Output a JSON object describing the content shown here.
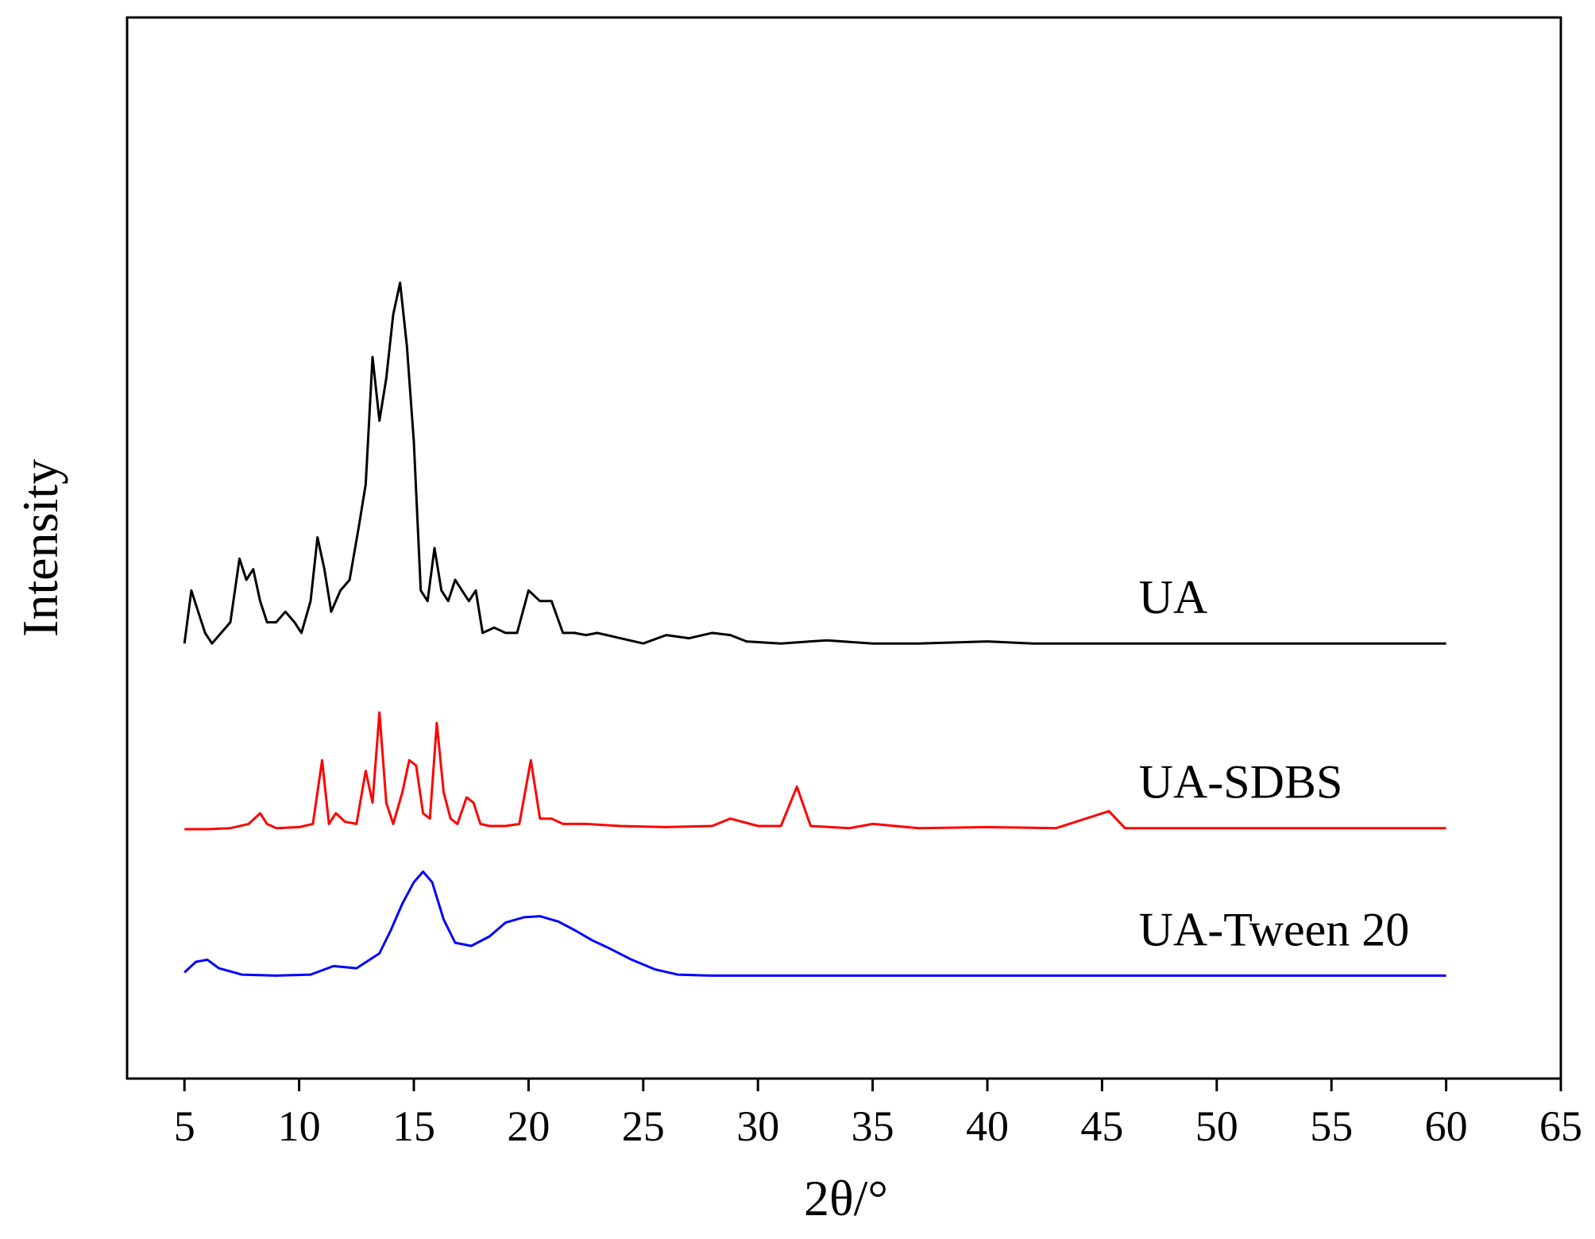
{
  "chart_data": {
    "type": "line",
    "title": "",
    "xlabel": "2θ/°",
    "ylabel": "Intensity",
    "xlim": [
      2.5,
      65
    ],
    "ylim": [
      0,
      1
    ],
    "x_ticks": [
      5,
      10,
      15,
      20,
      25,
      30,
      35,
      40,
      45,
      50,
      55,
      60,
      65
    ],
    "y_ticks_shown": false,
    "grid": false,
    "legend": "none; series named by labels placed beside the curves on the right",
    "series": [
      {
        "name": "UA",
        "color": "#000000",
        "x": [
          5.0,
          5.3,
          5.6,
          5.9,
          6.2,
          6.6,
          7.0,
          7.4,
          7.7,
          8.0,
          8.3,
          8.6,
          9.0,
          9.4,
          9.8,
          10.1,
          10.5,
          10.8,
          11.1,
          11.4,
          11.8,
          12.2,
          12.6,
          12.9,
          13.2,
          13.5,
          13.8,
          14.1,
          14.4,
          14.7,
          15.0,
          15.3,
          15.6,
          15.9,
          16.2,
          16.5,
          16.8,
          17.1,
          17.4,
          17.7,
          18.0,
          18.5,
          19.0,
          19.5,
          20.0,
          20.5,
          21.0,
          21.5,
          22.0,
          22.5,
          23.0,
          24.0,
          25.0,
          26.0,
          27.0,
          28.0,
          28.8,
          29.5,
          31.0,
          33.0,
          35.0,
          37.0,
          40.0,
          42.0,
          45.0,
          50.0,
          55.0,
          60.0
        ],
        "y": [
          0.41,
          0.46,
          0.44,
          0.42,
          0.41,
          0.42,
          0.43,
          0.49,
          0.47,
          0.48,
          0.45,
          0.43,
          0.43,
          0.44,
          0.43,
          0.42,
          0.45,
          0.51,
          0.48,
          0.44,
          0.46,
          0.47,
          0.52,
          0.56,
          0.68,
          0.62,
          0.66,
          0.72,
          0.75,
          0.69,
          0.6,
          0.46,
          0.45,
          0.5,
          0.46,
          0.45,
          0.47,
          0.46,
          0.45,
          0.46,
          0.42,
          0.425,
          0.42,
          0.42,
          0.46,
          0.45,
          0.45,
          0.42,
          0.42,
          0.418,
          0.42,
          0.415,
          0.41,
          0.418,
          0.415,
          0.42,
          0.418,
          0.412,
          0.41,
          0.413,
          0.41,
          0.41,
          0.412,
          0.41,
          0.41,
          0.41,
          0.41,
          0.41
        ]
      },
      {
        "name": "UA-SDBS",
        "color": "#ff0000",
        "x": [
          5.0,
          6.0,
          7.0,
          7.8,
          8.3,
          8.6,
          9.0,
          10.0,
          10.6,
          11.0,
          11.3,
          11.6,
          12.0,
          12.5,
          12.9,
          13.2,
          13.5,
          13.8,
          14.1,
          14.5,
          14.8,
          15.1,
          15.4,
          15.7,
          16.0,
          16.3,
          16.6,
          16.9,
          17.3,
          17.6,
          17.9,
          18.3,
          19.0,
          19.6,
          20.1,
          20.5,
          21.0,
          21.5,
          22.5,
          24.0,
          26.0,
          28.0,
          28.8,
          30.0,
          31.0,
          31.7,
          32.3,
          34.0,
          35.0,
          37.0,
          40.0,
          43.0,
          45.3,
          46.0,
          48.0,
          50.0,
          55.0,
          60.0
        ],
        "y": [
          0.235,
          0.235,
          0.236,
          0.24,
          0.25,
          0.24,
          0.236,
          0.237,
          0.24,
          0.3,
          0.24,
          0.25,
          0.242,
          0.24,
          0.29,
          0.26,
          0.345,
          0.26,
          0.24,
          0.27,
          0.3,
          0.295,
          0.25,
          0.245,
          0.335,
          0.27,
          0.245,
          0.24,
          0.265,
          0.26,
          0.24,
          0.238,
          0.238,
          0.24,
          0.3,
          0.245,
          0.245,
          0.24,
          0.24,
          0.238,
          0.237,
          0.238,
          0.245,
          0.238,
          0.238,
          0.275,
          0.238,
          0.236,
          0.24,
          0.236,
          0.237,
          0.236,
          0.252,
          0.236,
          0.236,
          0.236,
          0.236,
          0.236
        ]
      },
      {
        "name": "UA-Tween 20",
        "color": "#0000ff",
        "x": [
          5.0,
          5.5,
          6.0,
          6.5,
          7.5,
          9.0,
          10.5,
          11.5,
          12.5,
          13.5,
          14.0,
          14.5,
          15.0,
          15.4,
          15.8,
          16.3,
          16.8,
          17.5,
          18.3,
          19.0,
          19.8,
          20.5,
          21.3,
          22.0,
          22.8,
          23.5,
          24.5,
          25.5,
          26.5,
          28.0,
          30.0,
          35.0,
          40.0,
          45.0,
          50.0,
          55.0,
          60.0
        ],
        "y": [
          0.1,
          0.11,
          0.112,
          0.104,
          0.098,
          0.097,
          0.098,
          0.106,
          0.104,
          0.118,
          0.14,
          0.165,
          0.185,
          0.195,
          0.185,
          0.15,
          0.128,
          0.125,
          0.134,
          0.147,
          0.152,
          0.153,
          0.148,
          0.14,
          0.13,
          0.123,
          0.112,
          0.103,
          0.098,
          0.097,
          0.097,
          0.097,
          0.097,
          0.097,
          0.097,
          0.097,
          0.097
        ]
      }
    ]
  }
}
